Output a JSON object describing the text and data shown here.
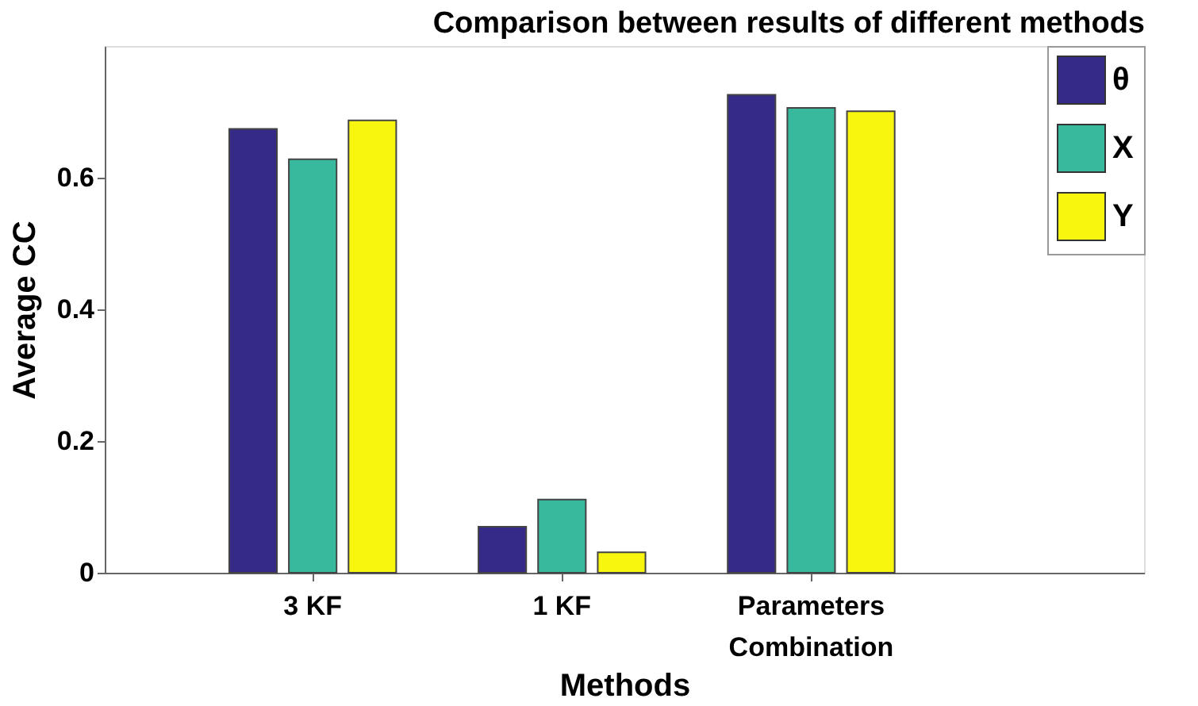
{
  "chart_data": {
    "type": "bar",
    "title": "Comparison between results of different methods",
    "xlabel": "Methods",
    "ylabel": "Average CC",
    "categories": [
      "3 KF",
      "1 KF",
      "Parameters Combination"
    ],
    "series": [
      {
        "name": "θ",
        "color": "#352a87",
        "values": [
          0.674,
          0.07,
          0.726
        ]
      },
      {
        "name": "X",
        "color": "#38b99e",
        "values": [
          0.628,
          0.111,
          0.706
        ]
      },
      {
        "name": "Y",
        "color": "#f8f50e",
        "values": [
          0.687,
          0.031,
          0.701
        ]
      }
    ],
    "ylim": [
      0,
      0.8
    ],
    "yticks": [
      0,
      0.2,
      0.4,
      0.6
    ],
    "grid": false,
    "legend": "top right"
  }
}
